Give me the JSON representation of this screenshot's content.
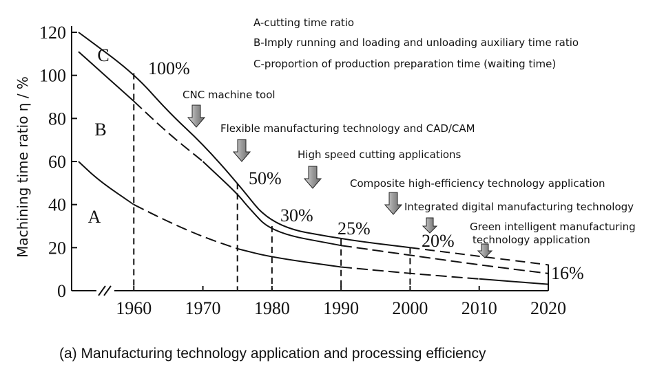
{
  "caption": "(a) Manufacturing technology application and processing efficiency",
  "chart_data": {
    "type": "line",
    "ylabel": "Machining time ratio η / %",
    "ylim": [
      0,
      120
    ],
    "yticks": [
      0,
      20,
      40,
      60,
      80,
      100,
      120
    ],
    "xlim": [
      1951,
      2020
    ],
    "xticks": [
      1960,
      1970,
      1980,
      1990,
      2000,
      2010,
      2020
    ],
    "axis_break": true,
    "grid": false,
    "legend": [
      "A-cutting time ratio",
      "B-Imply running and loading and unloading auxiliary time ratio",
      "C-proportion of production preparation time (waiting time)"
    ],
    "legend_position": "top-right",
    "series": [
      {
        "name": "C",
        "x": [
          1952,
          1960,
          1965,
          1970,
          1975,
          1980,
          1990,
          2000,
          2010,
          2020
        ],
        "y": [
          120,
          101,
          83,
          68,
          50,
          30,
          24,
          20,
          16,
          12
        ]
      },
      {
        "name": "B",
        "x": [
          1952,
          1960,
          1965,
          1970,
          1975,
          1976.5,
          1980,
          1990,
          2000,
          2010,
          2020
        ],
        "y": [
          111,
          88,
          73,
          60,
          45,
          39,
          27,
          21,
          16.5,
          12,
          8
        ]
      },
      {
        "name": "A",
        "x": [
          1952,
          1955,
          1960,
          1965,
          1970,
          1975,
          1980,
          1990,
          2000,
          2010,
          2020
        ],
        "y": [
          60,
          51,
          40,
          32,
          25,
          19.5,
          15.5,
          11,
          8,
          5.5,
          3
        ]
      }
    ],
    "region_labels": [
      "C",
      "B",
      "A"
    ],
    "guides": [
      1960,
      1975,
      1980,
      1990,
      2000
    ],
    "percent_labels": [
      "100%",
      "50%",
      "30%",
      "25%",
      "20%",
      "16%"
    ],
    "milestones": [
      "CNC machine tool",
      "Flexible manufacturing technology and CAD/CAM",
      "High speed cutting applications",
      "Composite high-efficiency technology application",
      "Integrated digital manufacturing technology",
      "Green intelligent manufacturing",
      "technology application"
    ],
    "colors": {
      "line": "#111111",
      "arrow_fill": "#a0a0a0",
      "arrow_stroke": "#222222"
    }
  }
}
